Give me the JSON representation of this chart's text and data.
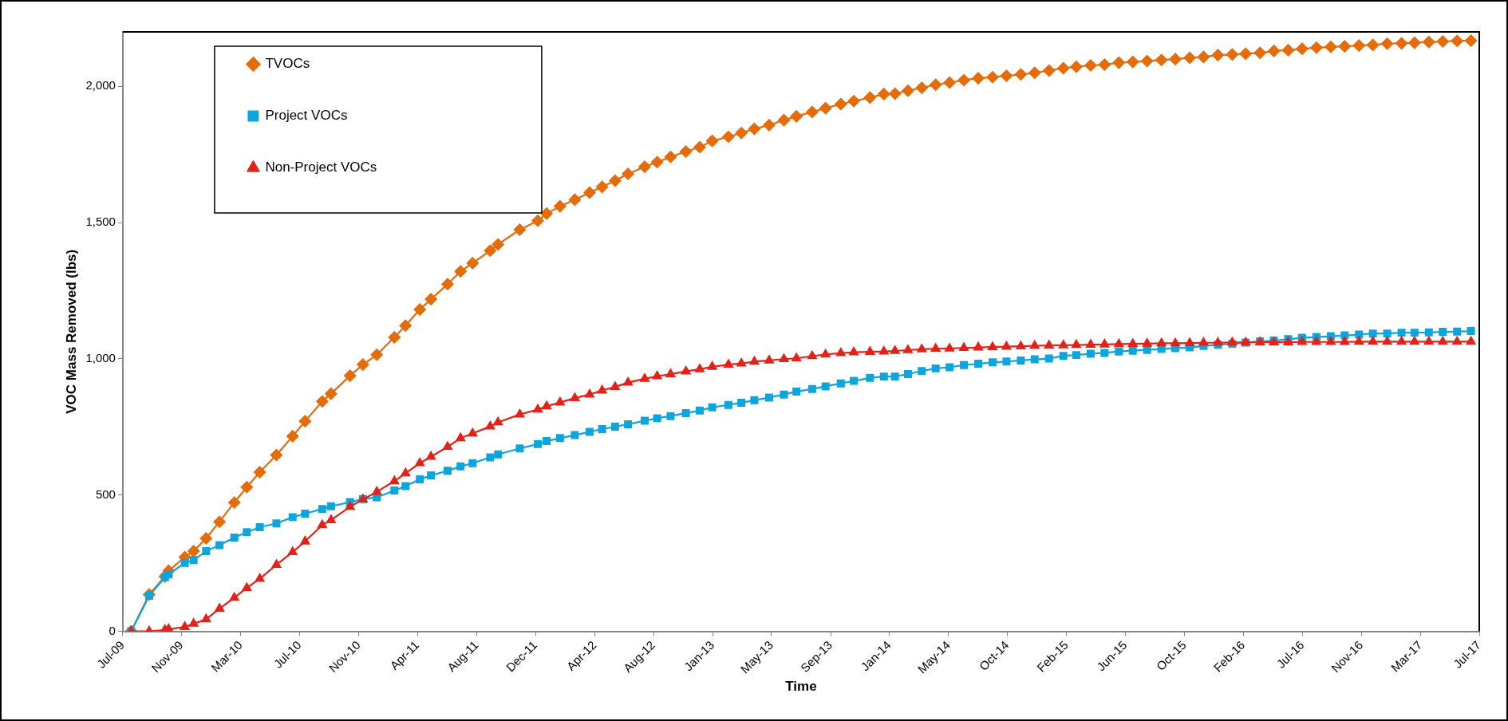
{
  "chart_data": {
    "type": "line",
    "xlabel": "Time",
    "ylabel": "VOC Mass Removed (lbs)",
    "legend": "top left",
    "line_style": "solid",
    "xlim": [
      "2009-07-08",
      "2017-07-18"
    ],
    "xticks": [
      {
        "value": "2009-07-08",
        "label": "Jul-09"
      },
      {
        "value": "2009-11-12",
        "label": "Nov-09"
      },
      {
        "value": "2010-03-20",
        "label": "Mar-10"
      },
      {
        "value": "2010-07-25",
        "label": "Jul-10"
      },
      {
        "value": "2010-11-30",
        "label": "Nov-10"
      },
      {
        "value": "2011-04-06",
        "label": "Apr-11"
      },
      {
        "value": "2011-08-12",
        "label": "Aug-11"
      },
      {
        "value": "2011-12-17",
        "label": "Dec-11"
      },
      {
        "value": "2012-04-23",
        "label": "Apr-12"
      },
      {
        "value": "2012-08-28",
        "label": "Aug-12"
      },
      {
        "value": "2013-01-03",
        "label": "Jan-13"
      },
      {
        "value": "2013-05-10",
        "label": "May-13"
      },
      {
        "value": "2013-09-15",
        "label": "Sep-13"
      },
      {
        "value": "2014-01-20",
        "label": "Jan-14"
      },
      {
        "value": "2014-05-28",
        "label": "May-14"
      },
      {
        "value": "2014-10-02",
        "label": "Oct-14"
      },
      {
        "value": "2015-02-07",
        "label": "Feb-15"
      },
      {
        "value": "2015-06-14",
        "label": "Jun-15"
      },
      {
        "value": "2015-10-20",
        "label": "Oct-15"
      },
      {
        "value": "2016-02-24",
        "label": "Feb-16"
      },
      {
        "value": "2016-07-01",
        "label": "Jul-16"
      },
      {
        "value": "2016-11-05",
        "label": "Nov-16"
      },
      {
        "value": "2017-03-13",
        "label": "Mar-17"
      },
      {
        "value": "2017-07-18",
        "label": "Jul-17"
      }
    ],
    "ylim": [
      0,
      2200
    ],
    "yticks": [
      {
        "value": 0,
        "label": "0"
      },
      {
        "value": 500,
        "label": "500"
      },
      {
        "value": 1000,
        "label": "1,000"
      },
      {
        "value": 1500,
        "label": "1,500"
      },
      {
        "value": 2000,
        "label": "2,000"
      }
    ],
    "x": [
      "2009-07-26",
      "2009-09-03",
      "2009-10-07",
      "2009-10-15",
      "2009-11-19",
      "2009-12-08",
      "2010-01-04",
      "2010-02-02",
      "2010-03-06",
      "2010-04-02",
      "2010-04-30",
      "2010-06-05",
      "2010-07-10",
      "2010-08-06",
      "2010-09-12",
      "2010-10-01",
      "2010-11-11",
      "2010-12-09",
      "2011-01-08",
      "2011-02-15",
      "2011-03-11",
      "2011-04-11",
      "2011-05-05",
      "2011-06-10",
      "2011-07-08",
      "2011-08-03",
      "2011-09-10",
      "2011-09-27",
      "2011-11-13",
      "2011-12-22",
      "2012-01-10",
      "2012-02-08",
      "2012-03-11",
      "2012-04-12",
      "2012-05-09",
      "2012-06-06",
      "2012-07-04",
      "2012-08-09",
      "2012-09-05",
      "2012-10-04",
      "2012-11-06",
      "2012-12-06",
      "2013-01-02",
      "2013-02-06",
      "2013-03-06",
      "2013-04-03",
      "2013-05-05",
      "2013-06-06",
      "2013-07-03",
      "2013-08-06",
      "2013-09-04",
      "2013-10-07",
      "2013-11-04",
      "2013-12-09",
      "2014-01-08",
      "2014-02-01",
      "2014-03-01",
      "2014-03-31",
      "2014-04-30",
      "2014-05-30",
      "2014-06-30",
      "2014-07-31",
      "2014-08-31",
      "2014-09-30",
      "2014-10-31",
      "2014-11-30",
      "2014-12-31",
      "2015-01-31",
      "2015-02-28",
      "2015-03-31",
      "2015-04-30",
      "2015-05-31",
      "2015-06-30",
      "2015-07-31",
      "2015-08-31",
      "2015-09-30",
      "2015-10-31",
      "2015-11-30",
      "2015-12-31",
      "2016-01-31",
      "2016-02-29",
      "2016-03-31",
      "2016-04-30",
      "2016-05-31",
      "2016-06-30",
      "2016-07-31",
      "2016-08-31",
      "2016-09-30",
      "2016-10-31",
      "2016-11-30",
      "2016-12-31",
      "2017-01-31",
      "2017-02-28",
      "2017-03-31",
      "2017-04-30",
      "2017-05-31",
      "2017-06-30"
    ],
    "series": [
      {
        "name": "TVOCs",
        "color": "#e46c0a",
        "marker": "diamond",
        "values": [
          0,
          135,
          201,
          222,
          272,
          294,
          341,
          402,
          473,
          529,
          584,
          647,
          716,
          771,
          844,
          872,
          938,
          979,
          1015,
          1079,
          1122,
          1181,
          1219,
          1274,
          1321,
          1351,
          1397,
          1420,
          1474,
          1507,
          1533,
          1560,
          1584,
          1610,
          1631,
          1654,
          1679,
          1705,
          1722,
          1741,
          1761,
          1777,
          1800,
          1815,
          1829,
          1844,
          1858,
          1876,
          1890,
          1906,
          1920,
          1935,
          1946,
          1959,
          1972,
          1973,
          1984,
          1995,
          2006,
          2014,
          2023,
          2030,
          2034,
          2039,
          2044,
          2050,
          2058,
          2067,
          2072,
          2077,
          2080,
          2087,
          2090,
          2093,
          2097,
          2100,
          2105,
          2108,
          2115,
          2117,
          2120,
          2123,
          2130,
          2133,
          2138,
          2142,
          2145,
          2147,
          2150,
          2152,
          2157,
          2158,
          2160,
          2163,
          2165,
          2167,
          2168
        ]
      },
      {
        "name": "Project VOCs",
        "color": "#0ea5dd",
        "marker": "square",
        "values": [
          0,
          130,
          198,
          209,
          251,
          261,
          294,
          316,
          344,
          364,
          382,
          396,
          419,
          432,
          449,
          459,
          474,
          485,
          492,
          517,
          533,
          558,
          572,
          589,
          605,
          617,
          638,
          649,
          671,
          687,
          698,
          709,
          720,
          732,
          742,
          751,
          760,
          773,
          782,
          790,
          801,
          810,
          822,
          831,
          839,
          848,
          858,
          869,
          880,
          889,
          899,
          910,
          919,
          930,
          935,
          935,
          944,
          955,
          965,
          969,
          977,
          982,
          987,
          990,
          994,
          998,
          1001,
          1011,
          1014,
          1019,
          1022,
          1027,
          1030,
          1033,
          1036,
          1039,
          1042,
          1047,
          1052,
          1055,
          1060,
          1064,
          1067,
          1072,
          1077,
          1080,
          1083,
          1086,
          1089,
          1093,
          1093,
          1096,
          1096,
          1097,
          1099,
          1100,
          1102
        ]
      },
      {
        "name": "Non-Project VOCs",
        "color": "#e2231a",
        "marker": "triangle",
        "values": [
          0,
          0,
          5,
          8,
          16,
          28,
          44,
          83,
          123,
          159,
          193,
          244,
          291,
          330,
          390,
          408,
          457,
          484,
          512,
          551,
          580,
          617,
          641,
          677,
          709,
          726,
          752,
          767,
          796,
          814,
          826,
          840,
          856,
          869,
          884,
          897,
          913,
          927,
          936,
          944,
          954,
          962,
          971,
          979,
          983,
          990,
          994,
          999,
          1002,
          1010,
          1016,
          1021,
          1024,
          1026,
          1027,
          1029,
          1032,
          1035,
          1037,
          1038,
          1040,
          1042,
          1043,
          1045,
          1046,
          1048,
          1049,
          1050,
          1051,
          1052,
          1053,
          1054,
          1055,
          1056,
          1057,
          1057,
          1058,
          1059,
          1059,
          1060,
          1060,
          1061,
          1061,
          1061,
          1062,
          1062,
          1062,
          1062,
          1063,
          1063,
          1063,
          1063,
          1063,
          1063,
          1063,
          1063,
          1063
        ]
      }
    ]
  }
}
